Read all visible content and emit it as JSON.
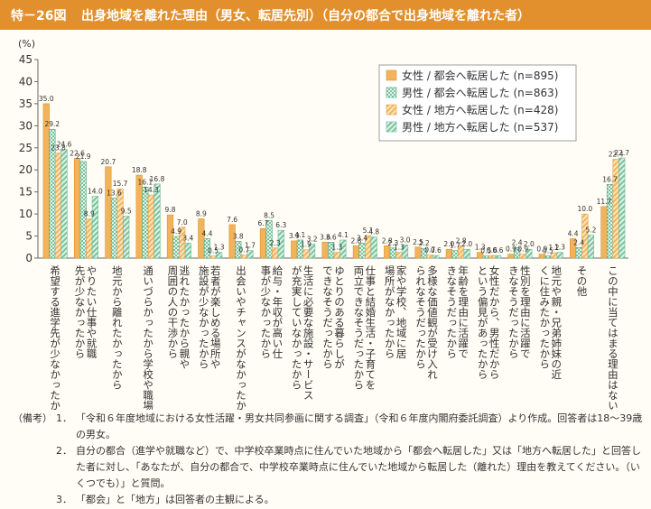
{
  "figure": {
    "number": "特－26図",
    "title": "出身地域を離れた理由（男女、転居先別）（自分の都合で出身地域を離れた者）"
  },
  "chart_data": {
    "type": "bar",
    "y_unit_label": "(%)",
    "ylim": [
      0,
      45
    ],
    "yticks": [
      0,
      5,
      10,
      15,
      20,
      25,
      30,
      35,
      40,
      45
    ],
    "legend_position": "top-right",
    "categories": [
      "希望する進学先が少なかったから",
      "やりたい仕事や就職先が少なかったから",
      "地元から離れたかったから",
      "通いづらかったから学校や職場に",
      "逃れたかったから親や周囲の人の干渉から",
      "若者が楽しめる場所や施設が少なかったから",
      "出会いやチャンスがなかったから",
      "給与・年収が高い仕事が少なかったから",
      "生活に必要な施設・サービスが充実していなかったから",
      "ゆとりのある暮らしができなそうだったから",
      "仕事と結婚生活・子育てを両立できなそうだったから",
      "家や学校、地域に居場所がなかったから",
      "多様な価値観が受け入れられなそうだったから",
      "年齢を理由に活躍できなそうだったから",
      "女性だから、男性だからという偏見があったから",
      "性別を理由に活躍できなそうだったから",
      "地元や親・兄弟姉妹の近くに住みたかったから",
      "その他",
      "この中に当てはまる理由はない"
    ],
    "series": [
      {
        "name": "女性 / 都会へ転居した (n=895)",
        "values": [
          35.0,
          22.6,
          20.7,
          18.8,
          9.8,
          8.9,
          7.6,
          6.7,
          3.9,
          3.6,
          2.8,
          2.8,
          2.5,
          2.0,
          1.3,
          0.9,
          0.9,
          4.4,
          11.7
        ]
      },
      {
        "name": "男性 / 都会へ転居した (n=863)",
        "values": [
          29.2,
          21.9,
          13.6,
          16.1,
          4.9,
          4.4,
          3.8,
          8.5,
          4.1,
          3.6,
          3.4,
          2.3,
          2.2,
          1.7,
          0.5,
          2.4,
          0.5,
          2.4,
          16.7
        ]
      },
      {
        "name": "女性 / 地方へ転居した (n=428)",
        "values": [
          23.8,
          8.9,
          15.7,
          14.3,
          7.0,
          0.5,
          0.7,
          2.3,
          1.9,
          1.3,
          5.1,
          1.3,
          0.7,
          2.8,
          0.6,
          0.9,
          1.2,
          10.0,
          22.4
        ]
      },
      {
        "name": "男性 / 地方へ転居した (n=537)",
        "values": [
          24.6,
          14.0,
          9.5,
          16.8,
          3.4,
          1.3,
          1.7,
          6.3,
          3.2,
          4.1,
          4.8,
          3.0,
          0.6,
          2.0,
          0.6,
          2.0,
          1.3,
          5.2,
          22.7
        ]
      }
    ]
  },
  "colors": {
    "header": "#e2902e",
    "series": [
      "#f2b35a",
      "#79c3a0",
      "#f7c98c",
      "#a7d9bf"
    ]
  },
  "notes": {
    "label": "（備考）",
    "items": [
      {
        "num": "1．",
        "text": "「令和６年度地域における女性活躍・男女共同参画に関する調査」（令和６年度内閣府委託調査）より作成。回答者は18～39歳の男女。"
      },
      {
        "num": "2．",
        "text": "自分の都合（進学や就職など）で、中学校卒業時点に住んでいた地域から「都会へ転居した」又は「地方へ転居した」と回答した者に対し、「あなたが、自分の都合で、中学校卒業時点に住んでいた地域から転居した（離れた）理由を教えてください。（いくつでも）」と質問。"
      },
      {
        "num": "3．",
        "text": "「都会」と「地方」は回答者の主観による。"
      }
    ]
  }
}
